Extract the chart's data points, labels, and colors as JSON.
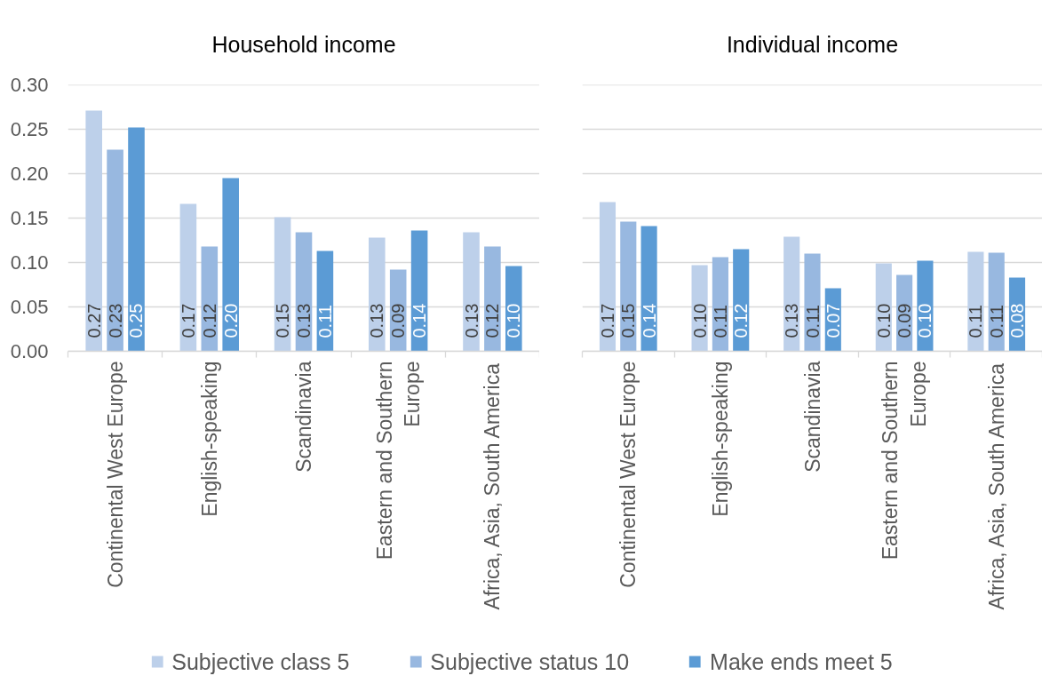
{
  "chart_data": [
    {
      "type": "bar",
      "title": "Household income",
      "categories": [
        "Continental West Europe",
        "English-speaking",
        "Scandinavia",
        "Eastern and Southern\nEurope",
        "Africa, Asia, South America"
      ],
      "series": [
        {
          "name": "Subjective class 5",
          "color": "#bdd0ea",
          "values": [
            0.271,
            0.166,
            0.151,
            0.128,
            0.134
          ],
          "value_labels": [
            "0.27",
            "0.17",
            "0.15",
            "0.13",
            "0.13"
          ]
        },
        {
          "name": "Subjective status 10",
          "color": "#98b8e0",
          "values": [
            0.227,
            0.118,
            0.134,
            0.092,
            0.118
          ],
          "value_labels": [
            "0.23",
            "0.12",
            "0.13",
            "0.09",
            "0.12"
          ]
        },
        {
          "name": "Make ends meet 5",
          "color": "#5b9bd5",
          "values": [
            0.252,
            0.195,
            0.113,
            0.136,
            0.096
          ],
          "value_labels": [
            "0.25",
            "0.20",
            "0.11",
            "0.14",
            "0.10"
          ]
        }
      ],
      "ylim": [
        0,
        0.3
      ],
      "yticks": [
        {
          "value": 0,
          "label": "0.00"
        },
        {
          "value": 0.05,
          "label": "0.05"
        },
        {
          "value": 0.1,
          "label": "0.10"
        },
        {
          "value": 0.15,
          "label": "0.15"
        },
        {
          "value": 0.2,
          "label": "0.20"
        },
        {
          "value": 0.25,
          "label": "0.25"
        },
        {
          "value": 0.3,
          "label": "0.30"
        }
      ],
      "grid": "y",
      "legend": "bottom"
    },
    {
      "type": "bar",
      "title": "Individual income",
      "categories": [
        "Continental West Europe",
        "English-speaking",
        "Scandinavia",
        "Eastern and Southern\nEurope",
        "Africa, Asia, South America"
      ],
      "series": [
        {
          "color": "#bdd0ea",
          "values": [
            0.168,
            0.097,
            0.129,
            0.099,
            0.112
          ],
          "value_labels": [
            "0.17",
            "0.10",
            "0.13",
            "0.10",
            "0.11"
          ]
        },
        {
          "color": "#98b8e0",
          "values": [
            0.146,
            0.106,
            0.11,
            0.086,
            0.111
          ],
          "value_labels": [
            "0.15",
            "0.11",
            "0.11",
            "0.09",
            "0.11"
          ]
        },
        {
          "color": "#5b9bd5",
          "values": [
            0.141,
            0.115,
            0.071,
            0.102,
            0.083
          ],
          "value_labels": [
            "0.14",
            "0.12",
            "0.07",
            "0.10",
            "0.08"
          ]
        }
      ],
      "ylim": [
        0,
        0.3
      ],
      "yticks": [
        0,
        0.05,
        0.1,
        0.15,
        0.2,
        0.25,
        0.3
      ],
      "tick_labels": "x",
      "grid": "y"
    }
  ]
}
